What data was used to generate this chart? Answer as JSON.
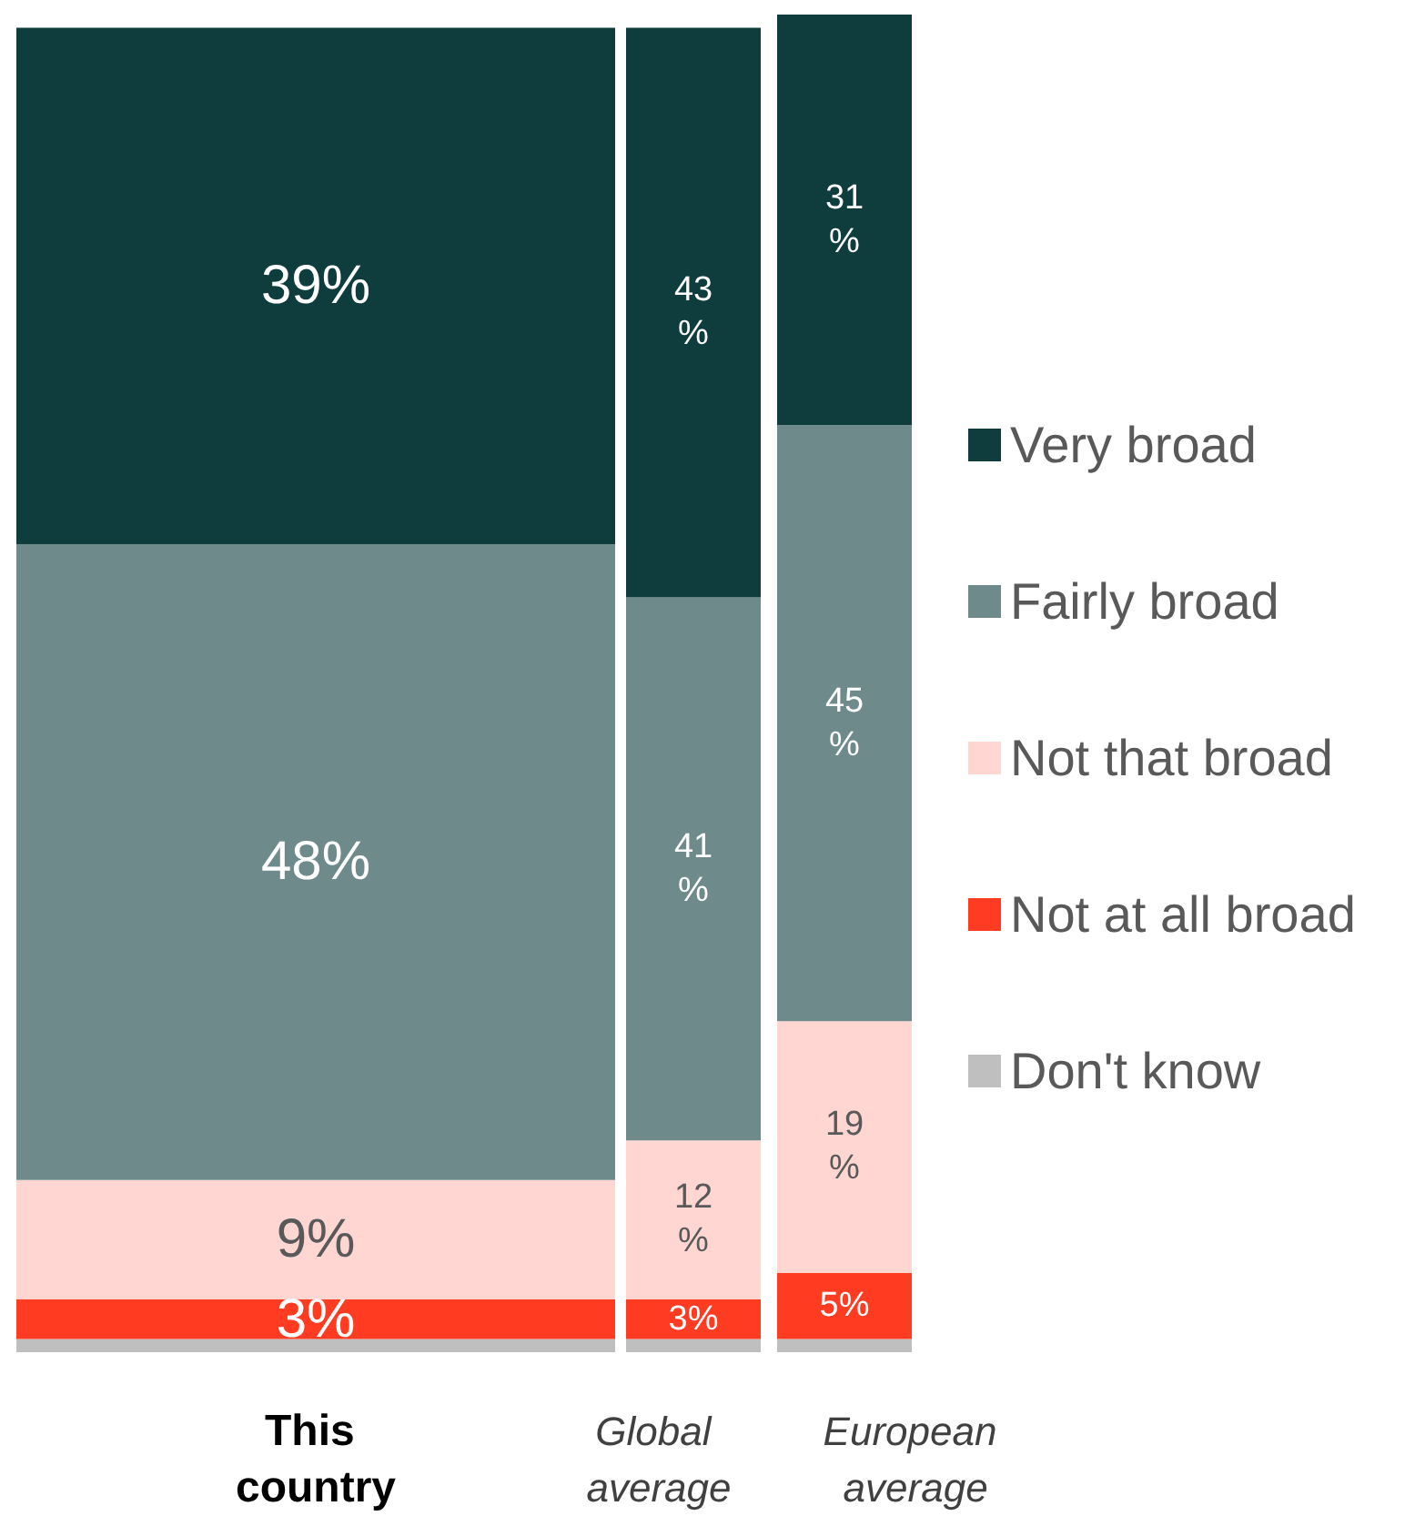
{
  "chart_data": {
    "type": "bar",
    "stacked": true,
    "categories": [
      "This country",
      "Global average",
      "European average"
    ],
    "ylim": [
      0,
      101
    ],
    "tick_labels": "x",
    "grid": false,
    "legend": "right",
    "series": [
      {
        "name": "Don't know",
        "color": "#bfbfbf",
        "values": [
          1,
          1,
          1
        ],
        "value_labels": [
          null,
          null,
          null
        ]
      },
      {
        "name": "Not at all broad",
        "color": "#ff3b22",
        "values": [
          3,
          3,
          5
        ],
        "value_labels": [
          "3%",
          "3%",
          "5%"
        ]
      },
      {
        "name": "Not that broad",
        "color": "#ffd6d2",
        "values": [
          9,
          12,
          19
        ],
        "value_labels": [
          "9%",
          "12%",
          "19%"
        ]
      },
      {
        "name": "Fairly broad",
        "color": "#6f8a8b",
        "values": [
          48,
          41,
          45
        ],
        "value_labels": [
          "48%",
          "41%",
          "45%"
        ]
      },
      {
        "name": "Very broad",
        "color": "#0f3d3e",
        "values": [
          39,
          43,
          31
        ],
        "value_labels": [
          "39%",
          "43%",
          "31%"
        ]
      }
    ]
  }
}
